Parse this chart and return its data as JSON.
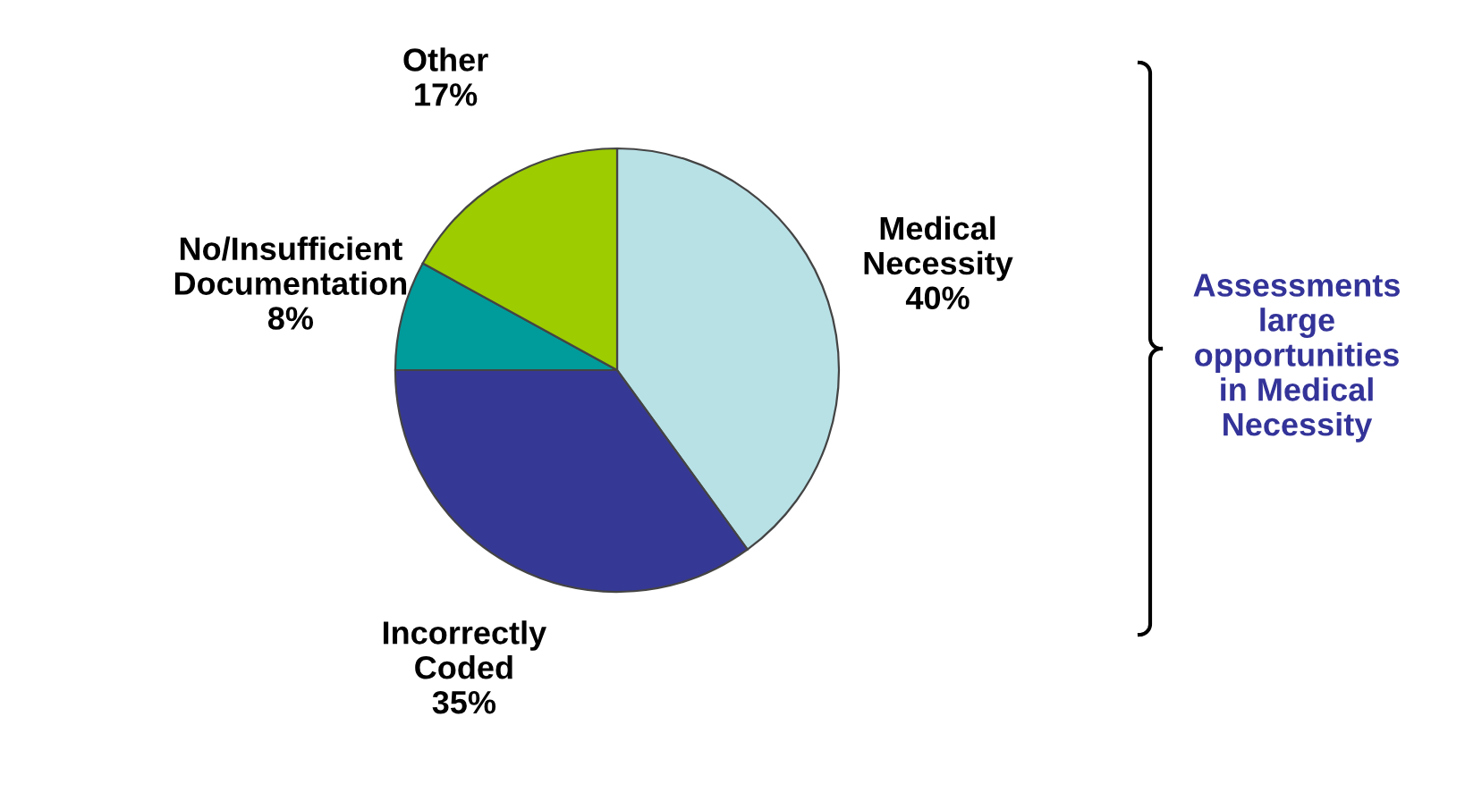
{
  "chart_data": {
    "type": "pie",
    "categories": [
      "Medical\nNecessity",
      "Incorrectly\nCoded",
      "No/Insufficient\nDocumentation",
      "Other"
    ],
    "values": [
      40,
      35,
      8,
      17
    ],
    "value_labels": [
      "40%",
      "35%",
      "8%",
      "17%"
    ],
    "colors": [
      "#b8e1e6",
      "#363896",
      "#009b9b",
      "#9dcc00"
    ],
    "annotations": [
      "Assessments\nlarge\nopportunities\nin Medical\nNecessity"
    ],
    "legend": false
  }
}
